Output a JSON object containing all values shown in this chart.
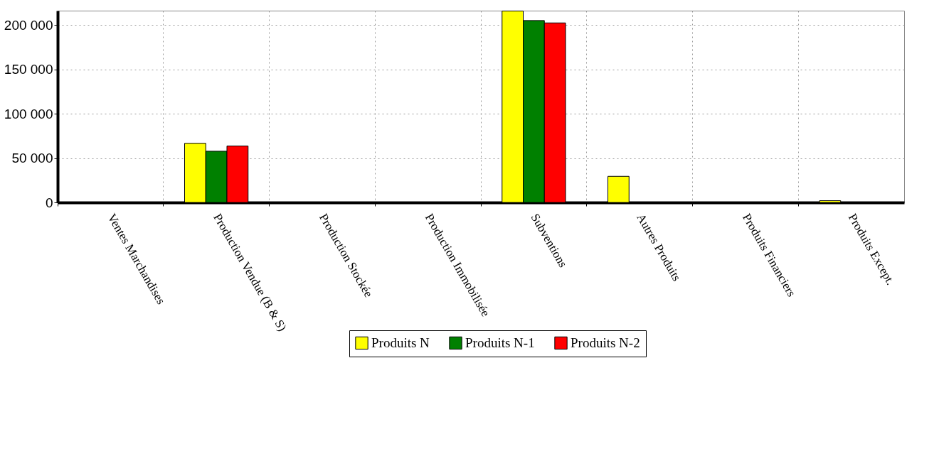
{
  "chart_data": {
    "type": "bar",
    "categories": [
      "Ventes Marchandises",
      "Production Vendue (B & S)",
      "Production Stockée",
      "Production Immobilisée",
      "Subventions",
      "Autres Produits",
      "Produits Financiers",
      "Produits Except."
    ],
    "series": [
      {
        "name": "Produits N",
        "color": "#ffff00",
        "values": [
          0,
          66600,
          0,
          0,
          215600,
          29400,
          0,
          2000
        ]
      },
      {
        "name": "Produits N-1",
        "color": "#008000",
        "values": [
          0,
          57700,
          0,
          0,
          204900,
          0,
          0,
          0
        ]
      },
      {
        "name": "Produits N-2",
        "color": "#ff0000",
        "values": [
          0,
          63600,
          0,
          0,
          202200,
          0,
          0,
          0
        ]
      }
    ],
    "ylim": [
      0,
      216000
    ],
    "yticks": [
      {
        "value": 0,
        "label": "0"
      },
      {
        "value": 50000,
        "label": "50 000"
      },
      {
        "value": 100000,
        "label": "100 000"
      },
      {
        "value": 150000,
        "label": "150 000"
      },
      {
        "value": 200000,
        "label": "200 000"
      }
    ],
    "grid": true,
    "legend": "bottom"
  }
}
